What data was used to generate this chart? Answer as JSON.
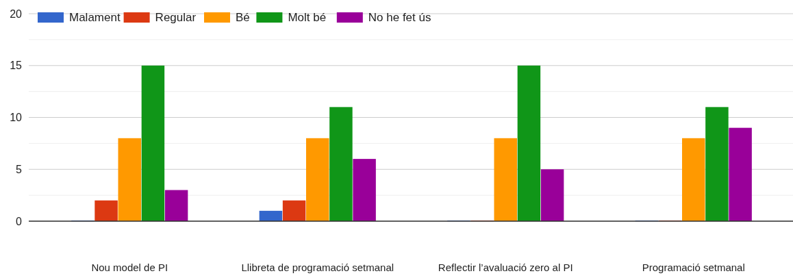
{
  "chart_data": {
    "type": "bar",
    "categories": [
      "Nou model de PI",
      "Llibreta de programació setmanal",
      "Reflectir l’avaluació zero al PI",
      "Programació setmanal"
    ],
    "series": [
      {
        "name": "Malament",
        "color": "#3366cc",
        "values": [
          0,
          1,
          0,
          0
        ]
      },
      {
        "name": "Regular",
        "color": "#dc3912",
        "values": [
          2,
          2,
          0,
          0
        ]
      },
      {
        "name": "Bé",
        "color": "#ff9900",
        "values": [
          8,
          8,
          8,
          8
        ]
      },
      {
        "name": "Molt bé",
        "color": "#109618",
        "values": [
          15,
          11,
          15,
          11
        ]
      },
      {
        "name": "No he fet ús",
        "color": "#990099",
        "values": [
          3,
          6,
          5,
          9
        ]
      }
    ],
    "ylim": [
      0,
      20
    ],
    "yticks": [
      0,
      {
        "value": 2.5,
        "label": null
      },
      5,
      {
        "value": 7.5,
        "label": null
      },
      10,
      {
        "value": 12.5,
        "label": null
      },
      15,
      {
        "value": 17.5,
        "label": null
      },
      20
    ],
    "grid": true,
    "legend": "top left"
  }
}
